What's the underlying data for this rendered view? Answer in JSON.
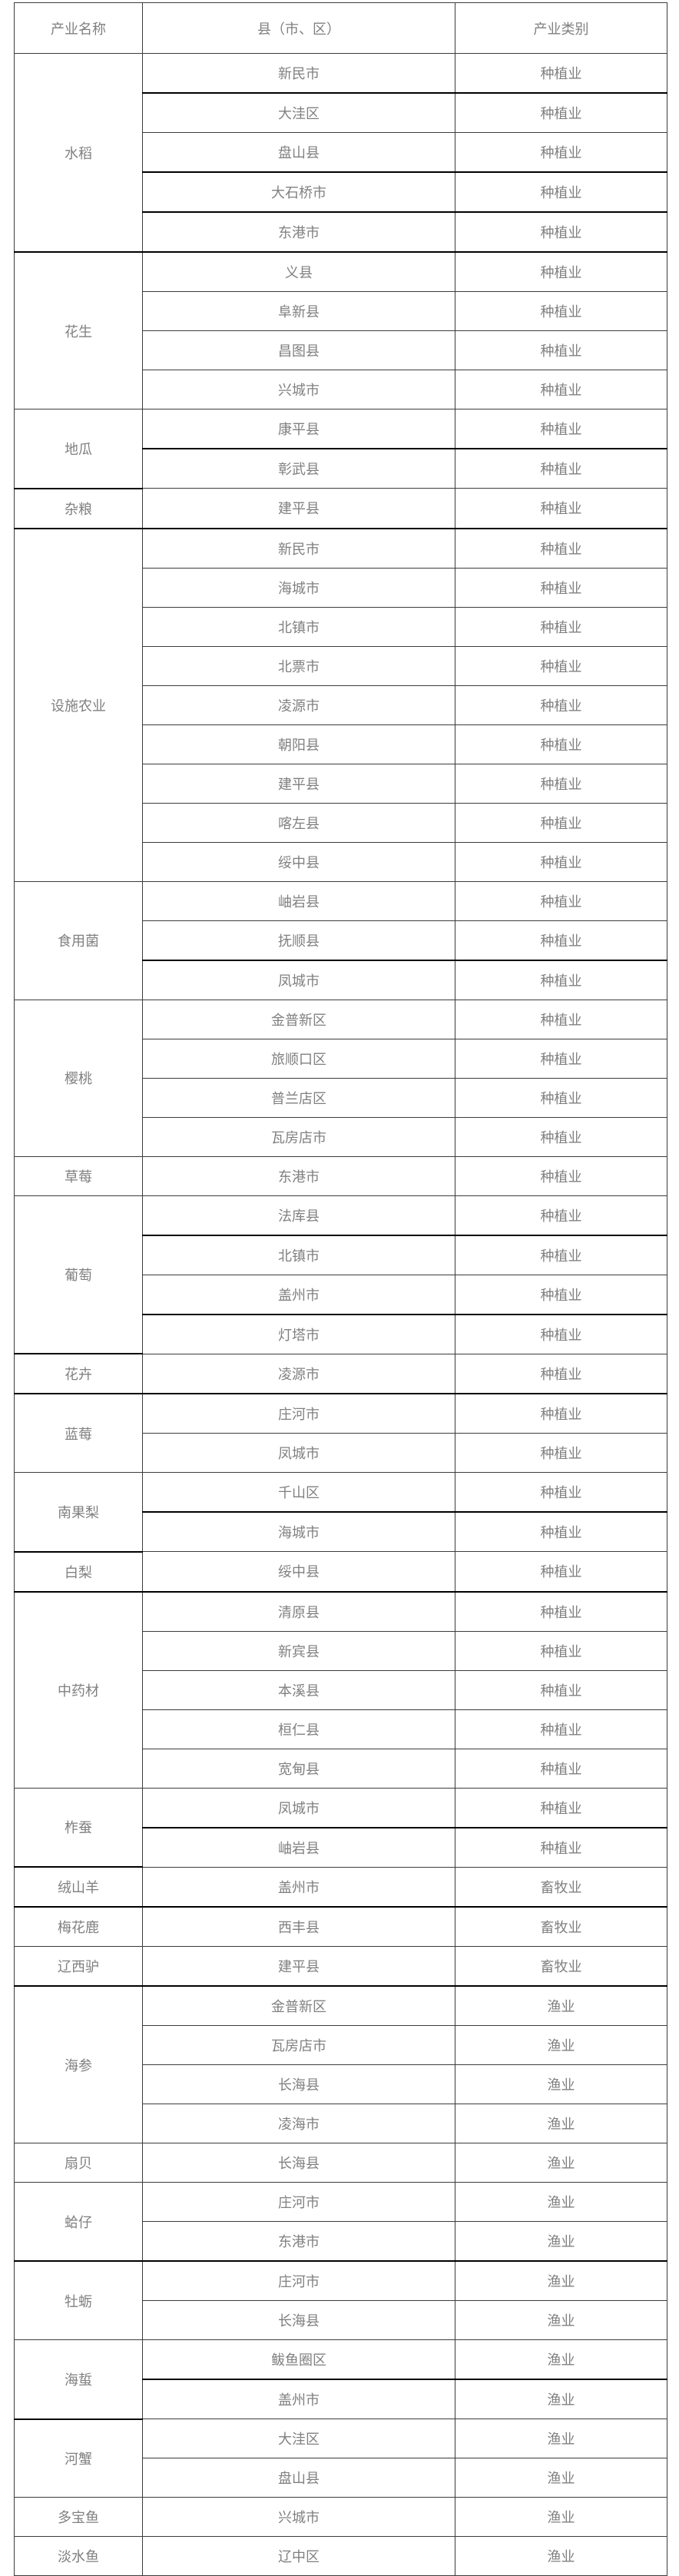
{
  "page": {
    "background": "#ffffff",
    "text_color": "#808080",
    "border_color": "#3c3c3c",
    "thick_border_color": "#000000"
  },
  "table": {
    "headers": {
      "industry": "产业名称",
      "county": "县（市、区）",
      "category": "产业类别"
    },
    "groups": [
      {
        "industry": "水稻",
        "thick_end": true,
        "rows": [
          {
            "county": "新民市",
            "category": "种植业",
            "thick": true
          },
          {
            "county": "大洼区",
            "category": "种植业"
          },
          {
            "county": "盘山县",
            "category": "种植业",
            "thick": true
          },
          {
            "county": "大石桥市",
            "category": "种植业",
            "thick": true
          },
          {
            "county": "东港市",
            "category": "种植业",
            "thick": true
          }
        ]
      },
      {
        "industry": "花生",
        "rows": [
          {
            "county": "义县",
            "category": "种植业"
          },
          {
            "county": "阜新县",
            "category": "种植业"
          },
          {
            "county": "昌图县",
            "category": "种植业"
          },
          {
            "county": "兴城市",
            "category": "种植业"
          }
        ]
      },
      {
        "industry": "地瓜",
        "rows": [
          {
            "county": "康平县",
            "category": "种植业",
            "thick": true
          },
          {
            "county": "彰武县",
            "category": "种植业"
          }
        ]
      },
      {
        "industry": "杂粮",
        "thick_end": true,
        "rows": [
          {
            "county": "建平县",
            "category": "种植业",
            "thick": true
          }
        ]
      },
      {
        "industry": "设施农业",
        "rows": [
          {
            "county": "新民市",
            "category": "种植业"
          },
          {
            "county": "海城市",
            "category": "种植业"
          },
          {
            "county": "北镇市",
            "category": "种植业"
          },
          {
            "county": "北票市",
            "category": "种植业"
          },
          {
            "county": "凌源市",
            "category": "种植业"
          },
          {
            "county": "朝阳县",
            "category": "种植业"
          },
          {
            "county": "建平县",
            "category": "种植业"
          },
          {
            "county": "喀左县",
            "category": "种植业"
          },
          {
            "county": "绥中县",
            "category": "种植业"
          }
        ]
      },
      {
        "industry": "食用菌",
        "rows": [
          {
            "county": "岫岩县",
            "category": "种植业"
          },
          {
            "county": "抚顺县",
            "category": "种植业",
            "thick": true
          },
          {
            "county": "凤城市",
            "category": "种植业"
          }
        ]
      },
      {
        "industry": "樱桃",
        "rows": [
          {
            "county": "金普新区",
            "category": "种植业"
          },
          {
            "county": "旅顺口区",
            "category": "种植业"
          },
          {
            "county": "普兰店区",
            "category": "种植业"
          },
          {
            "county": "瓦房店市",
            "category": "种植业"
          }
        ]
      },
      {
        "industry": "草莓",
        "rows": [
          {
            "county": "东港市",
            "category": "种植业"
          }
        ]
      },
      {
        "industry": "葡萄",
        "rows": [
          {
            "county": "法库县",
            "category": "种植业",
            "thick": true
          },
          {
            "county": "北镇市",
            "category": "种植业"
          },
          {
            "county": "盖州市",
            "category": "种植业",
            "thick": true
          },
          {
            "county": "灯塔市",
            "category": "种植业"
          }
        ]
      },
      {
        "industry": "花卉",
        "thick_end": true,
        "rows": [
          {
            "county": "凌源市",
            "category": "种植业",
            "thick": true
          }
        ]
      },
      {
        "industry": "蓝莓",
        "rows": [
          {
            "county": "庄河市",
            "category": "种植业"
          },
          {
            "county": "凤城市",
            "category": "种植业"
          }
        ]
      },
      {
        "industry": "南果梨",
        "rows": [
          {
            "county": "千山区",
            "category": "种植业",
            "thick": true
          },
          {
            "county": "海城市",
            "category": "种植业"
          }
        ]
      },
      {
        "industry": "白梨",
        "thick_end": true,
        "rows": [
          {
            "county": "绥中县",
            "category": "种植业",
            "thick": true
          }
        ]
      },
      {
        "industry": "中药材",
        "rows": [
          {
            "county": "清原县",
            "category": "种植业"
          },
          {
            "county": "新宾县",
            "category": "种植业"
          },
          {
            "county": "本溪县",
            "category": "种植业"
          },
          {
            "county": "桓仁县",
            "category": "种植业"
          },
          {
            "county": "宽甸县",
            "category": "种植业"
          }
        ]
      },
      {
        "industry": "柞蚕",
        "rows": [
          {
            "county": "凤城市",
            "category": "种植业",
            "thick": true
          },
          {
            "county": "岫岩县",
            "category": "种植业"
          }
        ]
      },
      {
        "industry": "绒山羊",
        "thick_end": true,
        "rows": [
          {
            "county": "盖州市",
            "category": "畜牧业",
            "thick": true
          }
        ]
      },
      {
        "industry": "梅花鹿",
        "rows": [
          {
            "county": "西丰县",
            "category": "畜牧业"
          }
        ]
      },
      {
        "industry": "辽西驴",
        "thick_end": true,
        "rows": [
          {
            "county": "建平县",
            "category": "畜牧业",
            "thick": true
          }
        ]
      },
      {
        "industry": "海参",
        "rows": [
          {
            "county": "金普新区",
            "category": "渔业"
          },
          {
            "county": "瓦房店市",
            "category": "渔业"
          },
          {
            "county": "长海县",
            "category": "渔业"
          },
          {
            "county": "凌海市",
            "category": "渔业"
          }
        ]
      },
      {
        "industry": "扇贝",
        "rows": [
          {
            "county": "长海县",
            "category": "渔业"
          }
        ]
      },
      {
        "industry": "蛤仔",
        "thick_end": true,
        "rows": [
          {
            "county": "庄河市",
            "category": "渔业"
          },
          {
            "county": "东港市",
            "category": "渔业",
            "thick": true
          }
        ]
      },
      {
        "industry": "牡蛎",
        "rows": [
          {
            "county": "庄河市",
            "category": "渔业"
          },
          {
            "county": "长海县",
            "category": "渔业"
          }
        ]
      },
      {
        "industry": "海蜇",
        "rows": [
          {
            "county": "鲅鱼圈区",
            "category": "渔业",
            "thick": true
          },
          {
            "county": "盖州市",
            "category": "渔业"
          }
        ]
      },
      {
        "industry": "河蟹",
        "rows": [
          {
            "county": "大洼区",
            "category": "渔业"
          },
          {
            "county": "盘山县",
            "category": "渔业"
          }
        ]
      },
      {
        "industry": "多宝鱼",
        "rows": [
          {
            "county": "兴城市",
            "category": "渔业"
          }
        ]
      },
      {
        "industry": "淡水鱼",
        "rows": [
          {
            "county": "辽中区",
            "category": "渔业"
          }
        ]
      }
    ]
  }
}
